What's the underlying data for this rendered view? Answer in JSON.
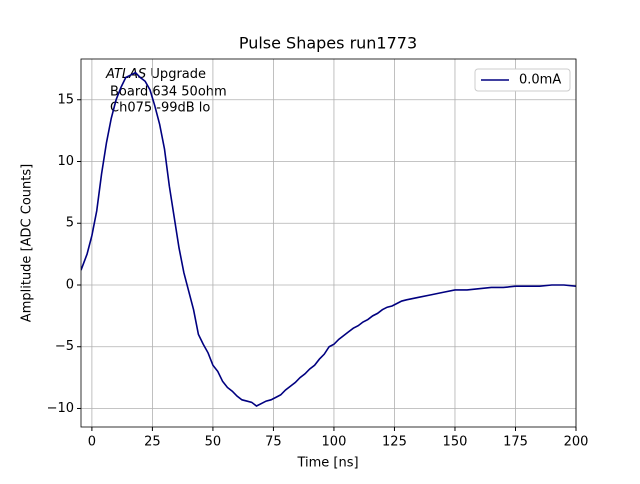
{
  "chart_data": {
    "type": "line",
    "title": "Pulse Shapes run1773",
    "xlabel": "Time [ns]",
    "ylabel": "Amplitude [ADC Counts]",
    "annotation": [
      "ATLAS",
      "Upgrade",
      "Board 634 50ohm",
      "Ch075 -99dB lo"
    ],
    "x": [
      -4.5,
      -2,
      0,
      2,
      4,
      6,
      8,
      10,
      12,
      14,
      16,
      18,
      20,
      22,
      24,
      26,
      28,
      30,
      32,
      34,
      36,
      38,
      40,
      42,
      44,
      46,
      48,
      50,
      52,
      54,
      56,
      58,
      60,
      62,
      64,
      66,
      68,
      70,
      72,
      74,
      76,
      78,
      80,
      82,
      84,
      86,
      88,
      90,
      92,
      94,
      96,
      98,
      100,
      102,
      104,
      106,
      108,
      110,
      112,
      114,
      116,
      118,
      120,
      122,
      124,
      126,
      128,
      130,
      135,
      140,
      145,
      150,
      155,
      160,
      165,
      170,
      175,
      180,
      185,
      190,
      195,
      200
    ],
    "series": [
      {
        "name": "0.0mA",
        "color": "#000080",
        "values": [
          1.2,
          2.5,
          4,
          6,
          9,
          11.5,
          13.5,
          15,
          16,
          16.8,
          17,
          17.2,
          16.8,
          16.5,
          15.8,
          14.5,
          13,
          11,
          8,
          5.5,
          3,
          1,
          -0.5,
          -2,
          -4,
          -4.8,
          -5.5,
          -6.5,
          -7,
          -7.8,
          -8.3,
          -8.6,
          -9,
          -9.3,
          -9.4,
          -9.5,
          -9.8,
          -9.6,
          -9.4,
          -9.3,
          -9.1,
          -8.9,
          -8.5,
          -8.2,
          -7.9,
          -7.5,
          -7.2,
          -6.8,
          -6.5,
          -6,
          -5.6,
          -5,
          -4.8,
          -4.4,
          -4.1,
          -3.8,
          -3.5,
          -3.3,
          -3,
          -2.8,
          -2.5,
          -2.3,
          -2,
          -1.8,
          -1.7,
          -1.5,
          -1.3,
          -1.2,
          -1,
          -0.8,
          -0.6,
          -0.4,
          -0.4,
          -0.3,
          -0.2,
          -0.2,
          -0.1,
          -0.1,
          -0.1,
          0,
          0,
          -0.1
        ]
      }
    ],
    "xlim": [
      -4.5,
      200
    ],
    "ylim": [
      -11.5,
      18.3
    ],
    "xticks": [
      0,
      25,
      50,
      75,
      100,
      125,
      150,
      175,
      200
    ],
    "yticks": [
      {
        "value": -10,
        "label": "−10"
      },
      {
        "value": -5,
        "label": "−5"
      },
      0,
      5,
      10,
      15
    ],
    "grid": true,
    "legend": "upper right"
  }
}
